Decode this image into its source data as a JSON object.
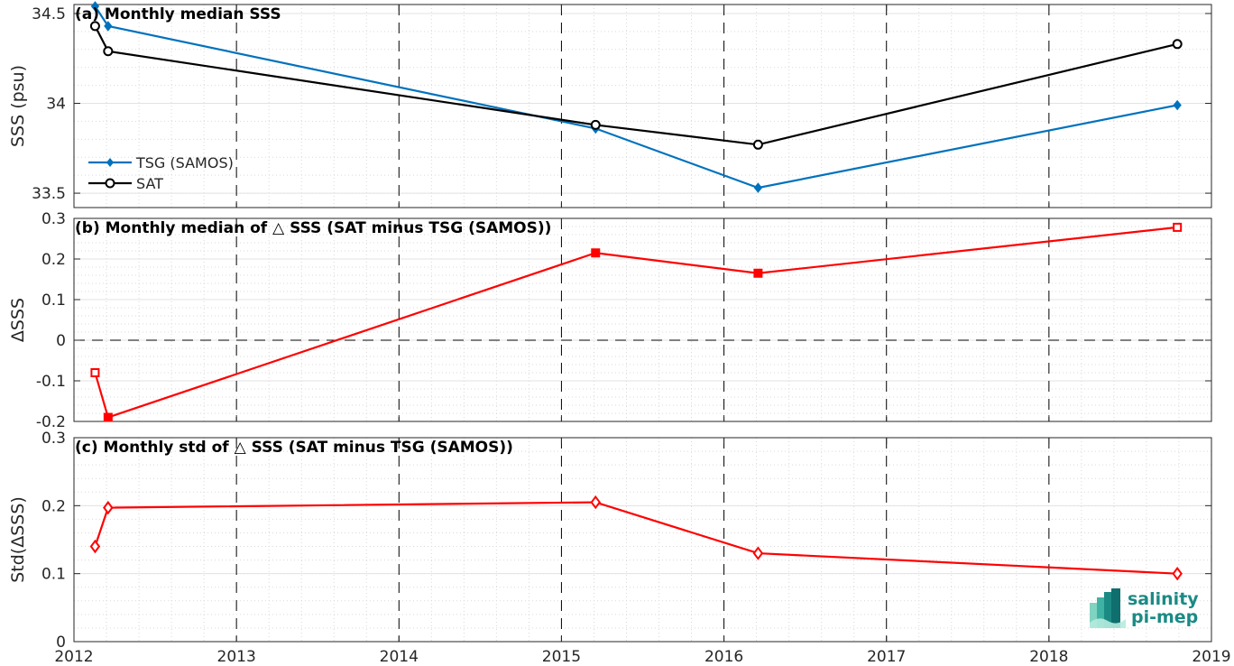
{
  "chart_data": [
    {
      "type": "line",
      "title": "(a) Monthly median SSS",
      "ylabel": "SSS (psu)",
      "xlim": [
        2012,
        2019
      ],
      "ylim": [
        33.42,
        34.55
      ],
      "yticks": [
        33.5,
        34,
        34.5
      ],
      "ytick_labels": [
        "33.5",
        "34",
        "34.5"
      ],
      "legend_placement": "lower-left",
      "series": [
        {
          "name": "TSG (SAMOS)",
          "color": "#0072BD",
          "marker": "filled-diamond",
          "x": [
            2012.13,
            2012.21,
            2015.21,
            2016.21,
            2018.79
          ],
          "y": [
            34.54,
            34.43,
            33.86,
            33.53,
            33.99
          ]
        },
        {
          "name": "SAT",
          "color": "#000000",
          "marker": "open-circle",
          "x": [
            2012.13,
            2012.21,
            2015.21,
            2016.21,
            2018.79
          ],
          "y": [
            34.43,
            34.29,
            33.88,
            33.77,
            34.33
          ]
        }
      ]
    },
    {
      "type": "line",
      "title": "(b) Monthly median of △ SSS (SAT minus TSG (SAMOS))",
      "ylabel": "ΔSSS",
      "xlim": [
        2012,
        2019
      ],
      "ylim": [
        -0.2,
        0.3
      ],
      "yticks": [
        -0.2,
        -0.1,
        0,
        0.1,
        0.2,
        0.3
      ],
      "ytick_labels": [
        "-0.2",
        "-0.1",
        "0",
        "0.1",
        "0.2",
        "0.3"
      ],
      "zero_line": true,
      "series": [
        {
          "color": "#FF0000",
          "marker": "square",
          "x": [
            2012.13,
            2012.21,
            2015.21,
            2016.21,
            2018.79
          ],
          "y": [
            -0.08,
            -0.19,
            0.215,
            0.165,
            0.278
          ],
          "filled": [
            false,
            true,
            true,
            true,
            false
          ]
        }
      ]
    },
    {
      "type": "line",
      "title": "(c) Monthly std of △ SSS (SAT minus TSG (SAMOS))",
      "ylabel": "Std(ΔSSS)",
      "xlim": [
        2012,
        2019
      ],
      "ylim": [
        0,
        0.3
      ],
      "yticks": [
        0,
        0.1,
        0.2,
        0.3
      ],
      "ytick_labels": [
        "0",
        "0.1",
        "0.2",
        "0.3"
      ],
      "xticks": [
        2012,
        2013,
        2014,
        2015,
        2016,
        2017,
        2018,
        2019
      ],
      "xtick_labels": [
        "2012",
        "2013",
        "2014",
        "2015",
        "2016",
        "2017",
        "2018",
        "2019"
      ],
      "series": [
        {
          "color": "#FF0000",
          "marker": "open-diamond",
          "x": [
            2012.13,
            2012.21,
            2015.21,
            2016.21,
            2018.79
          ],
          "y": [
            0.14,
            0.197,
            0.205,
            0.13,
            0.1
          ]
        }
      ]
    }
  ],
  "logo": {
    "line1": "salinity",
    "line2": "pi-mep"
  },
  "colors": {
    "grid_minor": "#d9d9d9",
    "grid_major": "#000000",
    "axes": "#262626"
  }
}
